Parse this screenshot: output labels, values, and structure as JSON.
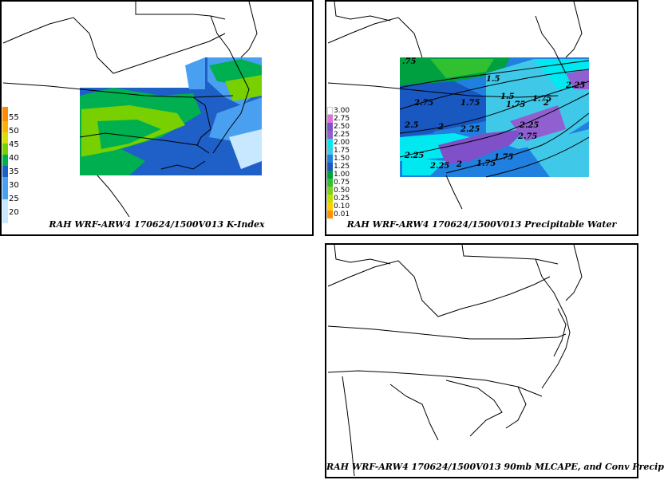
{
  "panels": {
    "kindex": {
      "caption": "RAH WRF-ARW4 170624/1500V013  K-Index",
      "legend": [
        {
          "label": "55",
          "color": "#ff8c00"
        },
        {
          "label": "50",
          "color": "#ffb000"
        },
        {
          "label": "45",
          "color": "#d8e000"
        },
        {
          "label": "40",
          "color": "#78d000"
        },
        {
          "label": "35",
          "color": "#00b050"
        },
        {
          "label": "30",
          "color": "#1e60c8"
        },
        {
          "label": "25",
          "color": "#4aa0f0"
        },
        {
          "label": "20",
          "color": "#c8e8ff"
        }
      ]
    },
    "pwat": {
      "caption": "RAH WRF-ARW4 170624/1500V013  Precipitable Water",
      "legend": [
        {
          "label": "3.00",
          "color": "#ffffff"
        },
        {
          "label": "2.75",
          "color": "#e070e0"
        },
        {
          "label": "2.50",
          "color": "#8050c8"
        },
        {
          "label": "2.25",
          "color": "#9060d0"
        },
        {
          "label": "2.00",
          "color": "#00e8f0"
        },
        {
          "label": "1.75",
          "color": "#40c8e8"
        },
        {
          "label": "1.50",
          "color": "#2080e0"
        },
        {
          "label": "1.25",
          "color": "#1858c0"
        },
        {
          "label": "1.00",
          "color": "#00a040"
        },
        {
          "label": "0.75",
          "color": "#30c030"
        },
        {
          "label": "0.50",
          "color": "#80d020"
        },
        {
          "label": "0.25",
          "color": "#c0e000"
        },
        {
          "label": "0.10",
          "color": "#ffd000"
        },
        {
          "label": "0.01",
          "color": "#ff9000"
        }
      ],
      "contour_labels": [
        ".75",
        "1.5",
        "1.75",
        "2",
        "2.25",
        "2.5",
        "2.75",
        "1.5",
        "1.75",
        "1.75",
        "2",
        "2.25",
        "2.25",
        "2.75",
        "1.75",
        "1.75",
        "2.25",
        "2",
        "2.25"
      ]
    },
    "cape": {
      "caption": "RAH WRF-ARW4 170624/1500V013  90mb MLCAPE, and Conv Precip"
    }
  }
}
